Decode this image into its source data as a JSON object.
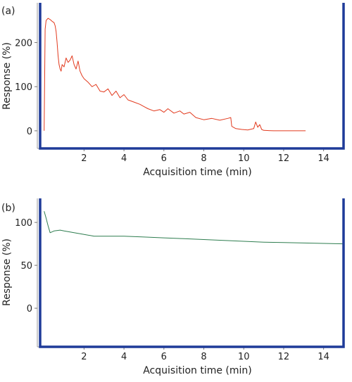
{
  "colors": {
    "frame": "#1f3b99",
    "series_a": "#e23a1e",
    "series_b": "#2e7d4f"
  },
  "chart_data": [
    {
      "panel_label": "(a)",
      "type": "line",
      "xlabel": "Acquisition time (min)",
      "ylabel": "Response (%)",
      "xlim": [
        -0.2,
        15
      ],
      "ylim": [
        -40,
        290
      ],
      "xticks": [
        2,
        4,
        6,
        8,
        10,
        12,
        14
      ],
      "yticks": [
        0,
        100,
        200
      ],
      "series": [
        {
          "color": "#e23a1e",
          "x": [
            0.0,
            0.05,
            0.1,
            0.2,
            0.3,
            0.4,
            0.5,
            0.55,
            0.6,
            0.65,
            0.7,
            0.75,
            0.8,
            0.85,
            0.9,
            1.0,
            1.1,
            1.2,
            1.3,
            1.4,
            1.5,
            1.6,
            1.7,
            1.8,
            1.9,
            2.0,
            2.2,
            2.4,
            2.6,
            2.8,
            3.0,
            3.2,
            3.4,
            3.6,
            3.8,
            4.0,
            4.2,
            4.5,
            4.8,
            5.0,
            5.2,
            5.5,
            5.8,
            6.0,
            6.2,
            6.5,
            6.8,
            7.0,
            7.3,
            7.6,
            8.0,
            8.4,
            8.8,
            9.2,
            9.35,
            9.4,
            9.6,
            9.9,
            10.2,
            10.5,
            10.6,
            10.7,
            10.8,
            10.9,
            11.0,
            11.5,
            12.0,
            12.5,
            13.1
          ],
          "y": [
            0,
            230,
            250,
            255,
            252,
            248,
            245,
            238,
            225,
            200,
            170,
            150,
            140,
            135,
            150,
            145,
            165,
            155,
            160,
            170,
            150,
            140,
            158,
            135,
            125,
            118,
            110,
            100,
            105,
            90,
            88,
            95,
            80,
            90,
            75,
            82,
            70,
            65,
            60,
            55,
            50,
            45,
            48,
            42,
            50,
            40,
            45,
            38,
            42,
            30,
            25,
            28,
            24,
            28,
            30,
            10,
            5,
            3,
            2,
            5,
            20,
            8,
            14,
            3,
            1,
            0,
            0,
            0,
            0
          ]
        }
      ]
    },
    {
      "panel_label": "(b)",
      "type": "line",
      "xlabel": "Acquisition time (min)",
      "ylabel": "Response (%)",
      "xlim": [
        -0.2,
        15
      ],
      "ylim": [
        -45,
        128
      ],
      "xticks": [
        2,
        4,
        6,
        8,
        10,
        12,
        14
      ],
      "yticks": [
        0,
        50,
        100
      ],
      "series": [
        {
          "color": "#2e7d4f",
          "x": [
            0.0,
            0.1,
            0.2,
            0.3,
            0.5,
            0.8,
            1.0,
            1.5,
            2.0,
            2.5,
            3.0,
            4.0,
            5.0,
            6.0,
            7.0,
            8.0,
            9.0,
            10.0,
            11.0,
            12.0,
            13.0,
            14.0,
            15.0
          ],
          "y": [
            113,
            105,
            96,
            88,
            90,
            91,
            90,
            88,
            86,
            84,
            84,
            84,
            83,
            82,
            81,
            80,
            79,
            78,
            77,
            76.5,
            76,
            75.5,
            75
          ]
        }
      ]
    }
  ]
}
